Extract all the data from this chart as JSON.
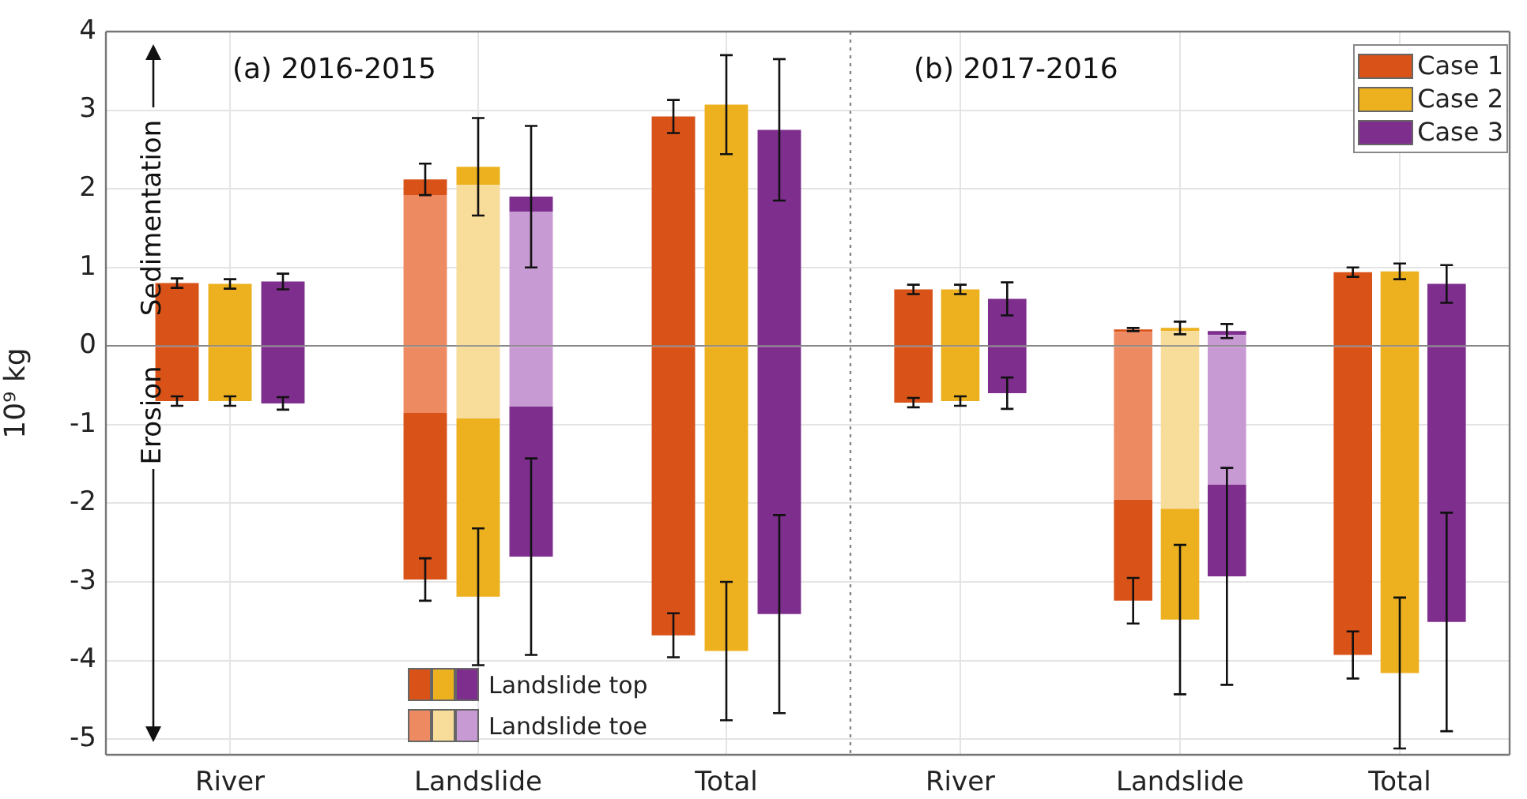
{
  "chart_data": [
    {
      "type": "bar",
      "ylabel": "10⁹ kg",
      "categories": [
        "River",
        "Landslide",
        "Total"
      ],
      "ylim": [
        -5.2,
        4
      ],
      "yticks": [
        -5,
        -4,
        -3,
        -2,
        -1,
        0,
        1,
        2,
        3,
        4
      ],
      "grid": true,
      "annotations": [
        "(a) 2016-2015",
        "Sedimentation",
        "Erosion",
        "Landslide top",
        "Landslide toe"
      ],
      "series": [
        {
          "color": "#ee8a62",
          "base": [
            null,
            0,
            null
          ],
          "values": [
            null,
            1.92,
            null
          ]
        },
        {
          "color": "#d95319",
          "base": [
            0,
            1.92,
            0
          ],
          "values": [
            0.8,
            0.2,
            2.92
          ],
          "errors": [
            0.06,
            0.2,
            0.21
          ]
        },
        {
          "color": "#ee8a62",
          "base": [
            null,
            0,
            null
          ],
          "values": [
            null,
            -0.85,
            null
          ]
        },
        {
          "color": "#d95319",
          "base": [
            0,
            -0.85,
            0
          ],
          "values": [
            -0.7,
            -2.12,
            -3.68
          ],
          "errors": [
            0.06,
            0.27,
            0.28
          ]
        },
        {
          "color": "#f7dc9a",
          "base": [
            null,
            0,
            null
          ],
          "values": [
            null,
            2.05,
            null
          ]
        },
        {
          "color": "#edb120",
          "base": [
            0,
            2.05,
            0
          ],
          "values": [
            0.79,
            0.23,
            3.07
          ],
          "errors": [
            0.06,
            0.62,
            0.63
          ]
        },
        {
          "color": "#f7dc9a",
          "base": [
            null,
            0,
            null
          ],
          "values": [
            null,
            -0.92,
            null
          ]
        },
        {
          "color": "#edb120",
          "base": [
            0,
            -0.92,
            0
          ],
          "values": [
            -0.7,
            -2.27,
            -3.88
          ],
          "errors": [
            0.06,
            0.87,
            0.88
          ]
        },
        {
          "color": "#c89ad4",
          "base": [
            null,
            0,
            null
          ],
          "values": [
            null,
            1.71,
            null
          ]
        },
        {
          "color": "#7e2f8e",
          "base": [
            0,
            1.71,
            0
          ],
          "values": [
            0.82,
            0.19,
            2.75
          ],
          "errors": [
            0.1,
            0.9,
            0.9
          ]
        },
        {
          "color": "#c89ad4",
          "base": [
            null,
            0,
            null
          ],
          "values": [
            null,
            -0.77,
            null
          ]
        },
        {
          "color": "#7e2f8e",
          "base": [
            0,
            -0.77,
            0
          ],
          "values": [
            -0.73,
            -1.91,
            -3.41
          ],
          "errors": [
            0.08,
            1.25,
            1.26
          ]
        }
      ]
    },
    {
      "type": "bar",
      "categories": [
        "River",
        "Landslide",
        "Total"
      ],
      "ylim": [
        -5.2,
        4
      ],
      "yticks": [
        -5,
        -4,
        -3,
        -2,
        -1,
        0,
        1,
        2,
        3,
        4
      ],
      "grid": true,
      "tick_labels": "x",
      "legend": "top right",
      "annotations": [
        "(b) 2017-2016"
      ],
      "series": [
        {
          "color": "#ee8a62",
          "base": [
            null,
            0,
            null
          ],
          "values": [
            null,
            0.18,
            null
          ]
        },
        {
          "name": "Case 1",
          "color": "#d95319",
          "base": [
            0,
            0.18,
            0
          ],
          "values": [
            0.72,
            0.03,
            0.94
          ],
          "errors": [
            0.06,
            0.02,
            0.06
          ]
        },
        {
          "color": "#ee8a62",
          "base": [
            null,
            0,
            null
          ],
          "values": [
            null,
            -1.95,
            null
          ]
        },
        {
          "color": "#d95319",
          "base": [
            0,
            -1.95,
            0
          ],
          "values": [
            -0.72,
            -1.29,
            -3.93
          ],
          "errors": [
            0.06,
            0.29,
            0.3
          ]
        },
        {
          "color": "#f7dc9a",
          "base": [
            null,
            0,
            null
          ],
          "values": [
            null,
            0.19,
            null
          ]
        },
        {
          "name": "Case 2",
          "color": "#edb120",
          "base": [
            0,
            0.19,
            0
          ],
          "values": [
            0.72,
            0.04,
            0.95
          ],
          "errors": [
            0.06,
            0.08,
            0.1
          ]
        },
        {
          "color": "#f7dc9a",
          "base": [
            null,
            0,
            null
          ],
          "values": [
            null,
            -2.07,
            null
          ]
        },
        {
          "color": "#edb120",
          "base": [
            0,
            -2.07,
            0
          ],
          "values": [
            -0.7,
            -1.41,
            -4.16
          ],
          "errors": [
            0.06,
            0.95,
            0.96
          ]
        },
        {
          "color": "#c89ad4",
          "base": [
            null,
            0,
            null
          ],
          "values": [
            null,
            0.14,
            null
          ]
        },
        {
          "name": "Case 3",
          "color": "#7e2f8e",
          "base": [
            0,
            0.14,
            0
          ],
          "values": [
            0.6,
            0.05,
            0.79
          ],
          "errors": [
            0.21,
            0.09,
            0.24
          ]
        },
        {
          "color": "#c89ad4",
          "base": [
            null,
            0,
            null
          ],
          "values": [
            null,
            -1.76,
            null
          ]
        },
        {
          "color": "#7e2f8e",
          "base": [
            0,
            -1.76,
            0
          ],
          "values": [
            -0.6,
            -1.17,
            -3.51
          ],
          "errors": [
            0.2,
            1.38,
            1.39
          ]
        }
      ]
    }
  ]
}
